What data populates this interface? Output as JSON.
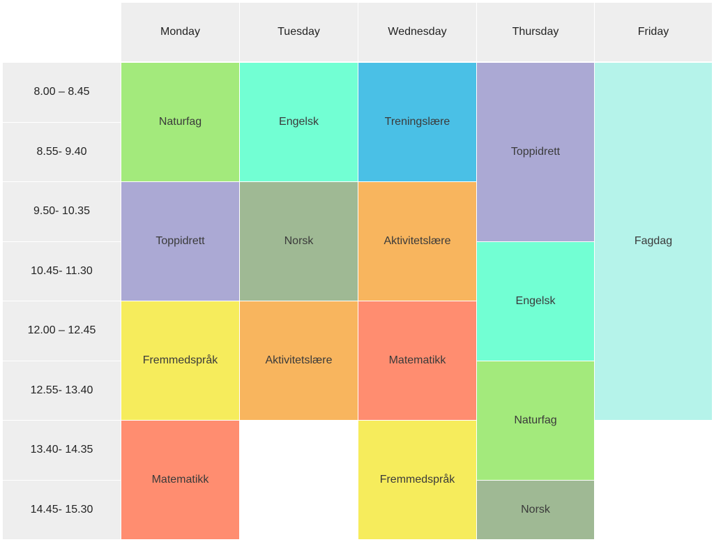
{
  "days": [
    {
      "id": "monday",
      "label": "Monday"
    },
    {
      "id": "tuesday",
      "label": "Tuesday"
    },
    {
      "id": "wednesday",
      "label": "Wednesday"
    },
    {
      "id": "thursday",
      "label": "Thursday"
    },
    {
      "id": "friday",
      "label": "Friday"
    }
  ],
  "times": [
    "8.00 – 8.45",
    "8.55- 9.40",
    "9.50- 10.35",
    "10.45- 11.30",
    "12.00 – 12.45",
    "12.55- 13.40",
    "13.40- 14.35",
    "14.45- 15.30"
  ],
  "subject_colors": {
    "Naturfag": "#a3ea7c",
    "Engelsk": "#72ffd3",
    "Treningslære": "#4ac0e6",
    "Toppidrett": "#aba9d4",
    "Fagdag": "#b5f3ea",
    "Norsk": "#9fb994",
    "Aktivitetslære": "#f8b55e",
    "Fremmedspråk": "#f6ec5c",
    "Matematikk": "#ff8d70"
  },
  "lessons": [
    {
      "day": 0,
      "start": 0,
      "span": 2,
      "subject": "Naturfag"
    },
    {
      "day": 0,
      "start": 2,
      "span": 2,
      "subject": "Toppidrett"
    },
    {
      "day": 0,
      "start": 4,
      "span": 2,
      "subject": "Fremmedspråk"
    },
    {
      "day": 0,
      "start": 6,
      "span": 2,
      "subject": "Matematikk"
    },
    {
      "day": 1,
      "start": 0,
      "span": 2,
      "subject": "Engelsk"
    },
    {
      "day": 1,
      "start": 2,
      "span": 2,
      "subject": "Norsk"
    },
    {
      "day": 1,
      "start": 4,
      "span": 2,
      "subject": "Aktivitetslære"
    },
    {
      "day": 2,
      "start": 0,
      "span": 2,
      "subject": "Treningslære"
    },
    {
      "day": 2,
      "start": 2,
      "span": 2,
      "subject": "Aktivitetslære"
    },
    {
      "day": 2,
      "start": 4,
      "span": 2,
      "subject": "Matematikk"
    },
    {
      "day": 2,
      "start": 6,
      "span": 2,
      "subject": "Fremmedspråk"
    },
    {
      "day": 3,
      "start": 0,
      "span": 3,
      "subject": "Toppidrett"
    },
    {
      "day": 3,
      "start": 3,
      "span": 2,
      "subject": "Engelsk"
    },
    {
      "day": 3,
      "start": 5,
      "span": 2,
      "subject": "Naturfag"
    },
    {
      "day": 3,
      "start": 7,
      "span": 1,
      "subject": "Norsk"
    },
    {
      "day": 4,
      "start": 0,
      "span": 6,
      "subject": "Fagdag"
    }
  ]
}
